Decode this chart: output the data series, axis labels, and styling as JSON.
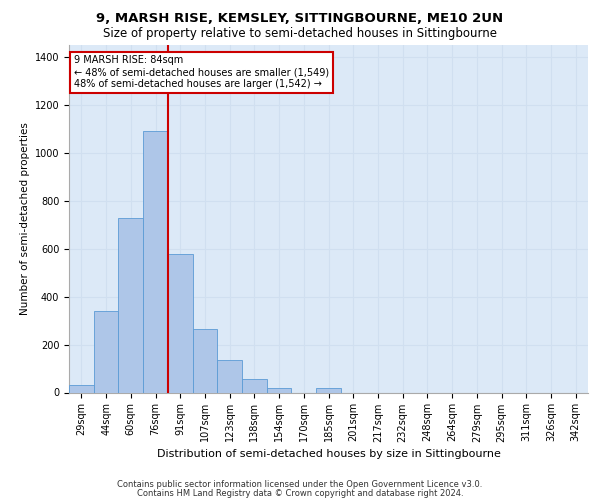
{
  "title_line1": "9, MARSH RISE, KEMSLEY, SITTINGBOURNE, ME10 2UN",
  "title_line2": "Size of property relative to semi-detached houses in Sittingbourne",
  "xlabel": "Distribution of semi-detached houses by size in Sittingbourne",
  "ylabel": "Number of semi-detached properties",
  "footer_line1": "Contains HM Land Registry data © Crown copyright and database right 2024.",
  "footer_line2": "Contains public sector information licensed under the Open Government Licence v3.0.",
  "categories": [
    "29sqm",
    "44sqm",
    "60sqm",
    "76sqm",
    "91sqm",
    "107sqm",
    "123sqm",
    "138sqm",
    "154sqm",
    "170sqm",
    "185sqm",
    "201sqm",
    "217sqm",
    "232sqm",
    "248sqm",
    "264sqm",
    "279sqm",
    "295sqm",
    "311sqm",
    "326sqm",
    "342sqm"
  ],
  "values": [
    30,
    340,
    730,
    1090,
    580,
    265,
    135,
    55,
    18,
    0,
    18,
    0,
    0,
    0,
    0,
    0,
    0,
    0,
    0,
    0,
    0
  ],
  "bar_color": "#aec6e8",
  "bar_edge_color": "#5b9bd5",
  "grid_color": "#d0dff0",
  "background_color": "#dce9f7",
  "vline_color": "#cc0000",
  "annotation_text": "9 MARSH RISE: 84sqm\n← 48% of semi-detached houses are smaller (1,549)\n48% of semi-detached houses are larger (1,542) →",
  "annotation_box_color": "#ffffff",
  "annotation_border_color": "#cc0000",
  "ylim": [
    0,
    1450
  ],
  "yticks": [
    0,
    200,
    400,
    600,
    800,
    1000,
    1200,
    1400
  ],
  "title1_fontsize": 9.5,
  "title2_fontsize": 8.5,
  "xlabel_fontsize": 8,
  "ylabel_fontsize": 7.5,
  "tick_fontsize": 7,
  "annot_fontsize": 7,
  "footer_fontsize": 6
}
